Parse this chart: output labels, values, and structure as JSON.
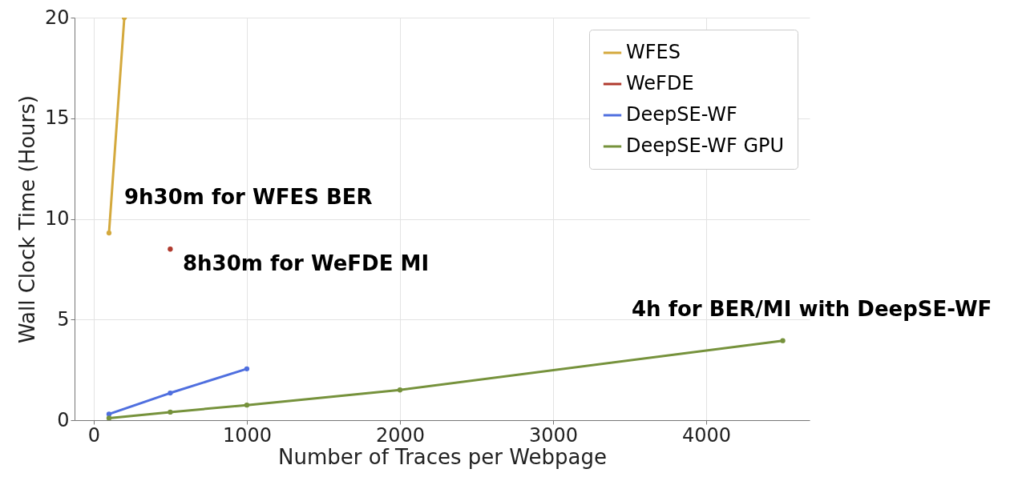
{
  "chart_data": {
    "type": "line",
    "xlabel": "Number of Traces per Webpage",
    "ylabel": "Wall Clock Time (Hours)",
    "xlim": [
      -125,
      4675
    ],
    "ylim": [
      0,
      20
    ],
    "xticks": [
      0,
      1000,
      2000,
      3000,
      4000
    ],
    "yticks": [
      0,
      5,
      10,
      15,
      20
    ],
    "grid": true,
    "legend": "top right",
    "marker": "circle",
    "line_style": "solid",
    "series": [
      {
        "name": "WFES",
        "color": "#d4a93d",
        "x": [
          100,
          200
        ],
        "values": [
          9.3,
          20
        ]
      },
      {
        "name": "WeFDE",
        "color": "#b03a2e",
        "x": [
          500
        ],
        "values": [
          8.5
        ]
      },
      {
        "name": "DeepSE-WF",
        "color": "#4f6fdf",
        "x": [
          100,
          500,
          1000
        ],
        "values": [
          0.3,
          1.35,
          2.55
        ]
      },
      {
        "name": "DeepSE-WF GPU",
        "color": "#76923c",
        "x": [
          100,
          500,
          1000,
          2000,
          4500
        ],
        "values": [
          0.1,
          0.4,
          0.75,
          1.5,
          3.95
        ]
      }
    ],
    "annotations": [
      "9h30m for WFES BER",
      "8h30m for WeFDE MI",
      "4h for BER/MI with DeepSE-WF"
    ]
  }
}
